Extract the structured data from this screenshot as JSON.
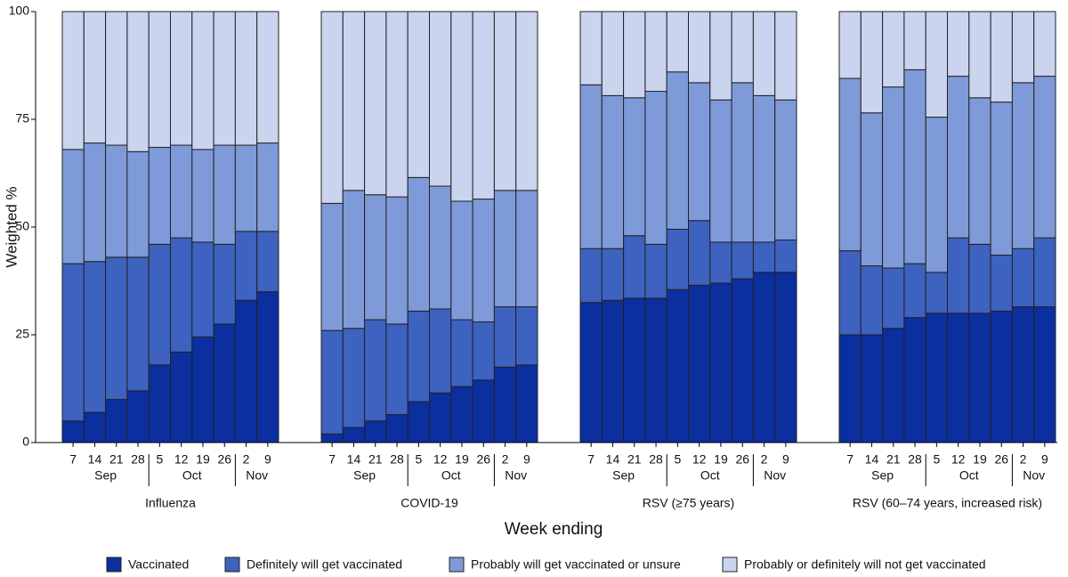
{
  "chart_data": {
    "type": "stacked_bar",
    "ylabel": "Weighted %",
    "xlabel": "Week ending",
    "ylim": [
      0,
      100
    ],
    "yticks": [
      0,
      25,
      50,
      75,
      100
    ],
    "categories": [
      "7",
      "14",
      "21",
      "28",
      "5",
      "12",
      "19",
      "26",
      "2",
      "9"
    ],
    "category_months": [
      "Sep",
      "Sep",
      "Sep",
      "Sep",
      "Oct",
      "Oct",
      "Oct",
      "Oct",
      "Nov",
      "Nov"
    ],
    "series": [
      {
        "name": "Vaccinated",
        "color": "#0b2f9f"
      },
      {
        "name": "Definitely will get vaccinated",
        "color": "#3d62bf"
      },
      {
        "name": "Probably will get vaccinated or unsure",
        "color": "#7f9ad8"
      },
      {
        "name": "Probably or definitely will not get vaccinated",
        "color": "#cad4ee"
      }
    ],
    "panels": [
      {
        "label": "Influenza",
        "values": [
          [
            5,
            7,
            10,
            12,
            18,
            21,
            24.5,
            27.5,
            33,
            35
          ],
          [
            36.5,
            35,
            33,
            31,
            28,
            26.5,
            22,
            18.5,
            16,
            14
          ],
          [
            26.5,
            27.5,
            26,
            24.5,
            22.5,
            21.5,
            21.5,
            23,
            20,
            20.5
          ],
          [
            32,
            30.5,
            31,
            32.5,
            31.5,
            31,
            32,
            31,
            31,
            30.5
          ]
        ]
      },
      {
        "label": "COVID-19",
        "values": [
          [
            2,
            3.5,
            5,
            6.5,
            9.5,
            11.5,
            13,
            14.5,
            17.5,
            18
          ],
          [
            24,
            23,
            23.5,
            21,
            21,
            19.5,
            15.5,
            13.5,
            14,
            13.5
          ],
          [
            29.5,
            32,
            29,
            29.5,
            31,
            28.5,
            27.5,
            28.5,
            27,
            27
          ],
          [
            44.5,
            41.5,
            42.5,
            43,
            38.5,
            40.5,
            44,
            43.5,
            41.5,
            41.5
          ]
        ]
      },
      {
        "label": "RSV (≥75 years)",
        "values": [
          [
            32.5,
            33,
            33.5,
            33.5,
            35.5,
            36.5,
            37,
            38,
            39.5,
            39.5
          ],
          [
            12.5,
            12,
            14.5,
            12.5,
            14,
            15,
            9.5,
            8.5,
            7,
            7.5
          ],
          [
            38,
            35.5,
            32,
            35.5,
            36.5,
            32,
            33,
            37,
            34,
            32.5
          ],
          [
            17,
            19.5,
            20,
            18.5,
            14,
            16.5,
            20.5,
            16.5,
            19.5,
            20.5
          ]
        ]
      },
      {
        "label": "RSV (60–74 years, increased risk)",
        "values": [
          [
            25,
            25,
            26.5,
            29,
            30,
            30,
            30,
            30.5,
            31.5,
            31.5
          ],
          [
            19.5,
            16,
            14,
            12.5,
            9.5,
            17.5,
            16,
            13,
            13.5,
            16
          ],
          [
            40,
            35.5,
            42,
            45,
            36,
            37.5,
            34,
            35.5,
            38.5,
            37.5
          ],
          [
            15.5,
            23.5,
            17.5,
            13.5,
            24.5,
            15,
            20,
            21,
            16.5,
            15
          ]
        ]
      }
    ]
  }
}
